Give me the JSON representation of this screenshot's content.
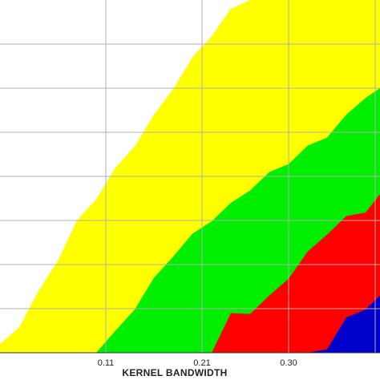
{
  "chart_data": {
    "type": "area",
    "xlabel": "KERNEL BANDWIDTH",
    "ylabel": "",
    "xlim": [
      0.0,
      0.395
    ],
    "ylim": [
      0,
      8
    ],
    "grid": true,
    "x_ticks": [
      {
        "value": 0.11,
        "label": "0.11"
      },
      {
        "value": 0.21,
        "label": "0.21"
      },
      {
        "value": 0.3,
        "label": "0.30"
      },
      {
        "value": 0.39,
        "label": ""
      }
    ],
    "y_gridlines": [
      1,
      2,
      3,
      4,
      5,
      6,
      7
    ],
    "x": [
      0.0,
      0.02,
      0.04,
      0.06,
      0.08,
      0.1,
      0.12,
      0.14,
      0.16,
      0.18,
      0.2,
      0.22,
      0.24,
      0.26,
      0.28,
      0.3,
      0.32,
      0.34,
      0.36,
      0.38,
      0.395
    ],
    "series": [
      {
        "color": "#0000cc",
        "values": [
          0,
          0,
          0,
          0,
          0,
          0,
          0,
          0,
          0,
          0,
          0,
          0,
          0,
          0,
          0,
          0,
          0,
          0.2,
          0.8,
          1.1,
          1.3
        ]
      },
      {
        "color": "#ff0000",
        "values": [
          0,
          0,
          0,
          0,
          0,
          0,
          0,
          0,
          0,
          0,
          0,
          0,
          0.9,
          1.0,
          1.3,
          1.8,
          2.3,
          2.8,
          3.1,
          3.3,
          3.6
        ]
      },
      {
        "color": "#00ee00",
        "values": [
          0,
          0,
          0,
          0,
          0,
          0,
          0.5,
          1.1,
          1.7,
          2.3,
          2.7,
          3.1,
          3.4,
          3.8,
          4.1,
          4.4,
          4.7,
          5.0,
          5.4,
          5.9,
          6.0
        ]
      },
      {
        "color": "#ffff00",
        "values": [
          0.2,
          0.7,
          1.4,
          2.2,
          3.0,
          3.6,
          4.2,
          4.8,
          5.4,
          6.1,
          6.7,
          7.3,
          7.8,
          8.0,
          8.0,
          8.0,
          8.0,
          8.0,
          8.0,
          8.0,
          8.0
        ]
      }
    ]
  }
}
